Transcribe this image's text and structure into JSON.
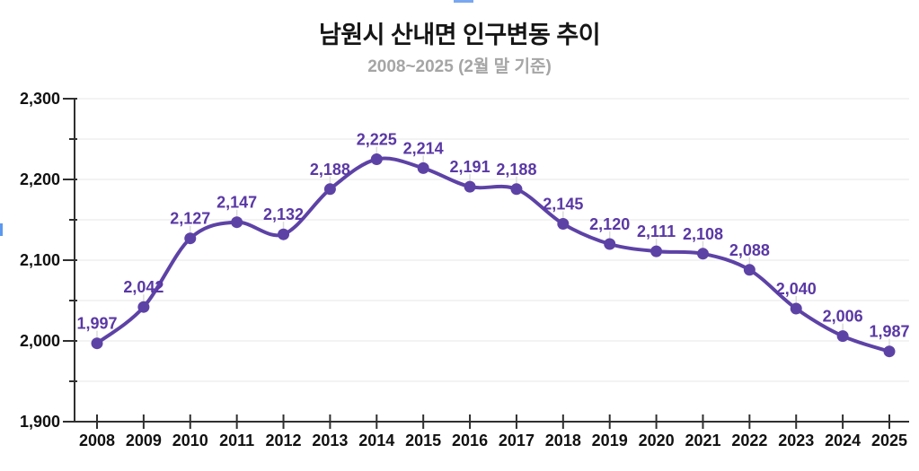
{
  "header": {
    "title": "남원시 산내면 인구변동 추이",
    "subtitle": "2008~2025 (2월 말 기준)"
  },
  "chart_data": {
    "type": "line",
    "title": "남원시 산내면 인구변동 추이",
    "subtitle": "2008~2025 (2월 말 기준)",
    "categories": [
      "2008",
      "2009",
      "2010",
      "2011",
      "2012",
      "2013",
      "2014",
      "2015",
      "2016",
      "2017",
      "2018",
      "2019",
      "2020",
      "2021",
      "2022",
      "2023",
      "2024",
      "2025"
    ],
    "values": [
      1997,
      2042,
      2127,
      2147,
      2132,
      2188,
      2225,
      2214,
      2191,
      2188,
      2145,
      2120,
      2111,
      2108,
      2088,
      2040,
      2006,
      1987
    ],
    "point_labels": [
      "1,997",
      "2,042",
      "2,127",
      "2,147",
      "2,132",
      "2,188",
      "2,225",
      "2,214",
      "2,191",
      "2,188",
      "2,145",
      "2,120",
      "2,111",
      "2,108",
      "2,088",
      "2,040",
      "2,006",
      "1,987"
    ],
    "xlabel": "",
    "ylabel": "",
    "ylim": [
      1900,
      2300
    ],
    "ytick_major_step": 100,
    "ytick_minor_step": 50,
    "ytick_labels": [
      "1,900",
      "2,000",
      "2,100",
      "2,200",
      "2,300"
    ],
    "grid": true,
    "legend": false,
    "smooth": true,
    "colors": {
      "line": "#5d42a6",
      "marker": "#5d42a6",
      "data_label": "#5a38a5",
      "axis": "#2f2f2f",
      "grid": "#e7e7e7",
      "leader": "#dcdcdc",
      "tick_label": "#111111",
      "title": "#151515",
      "subtitle": "#a5a5a5"
    }
  },
  "artifacts": {
    "top_fragment_color": "#7aa7f0",
    "left_fragment_color": "#5c99ee"
  }
}
